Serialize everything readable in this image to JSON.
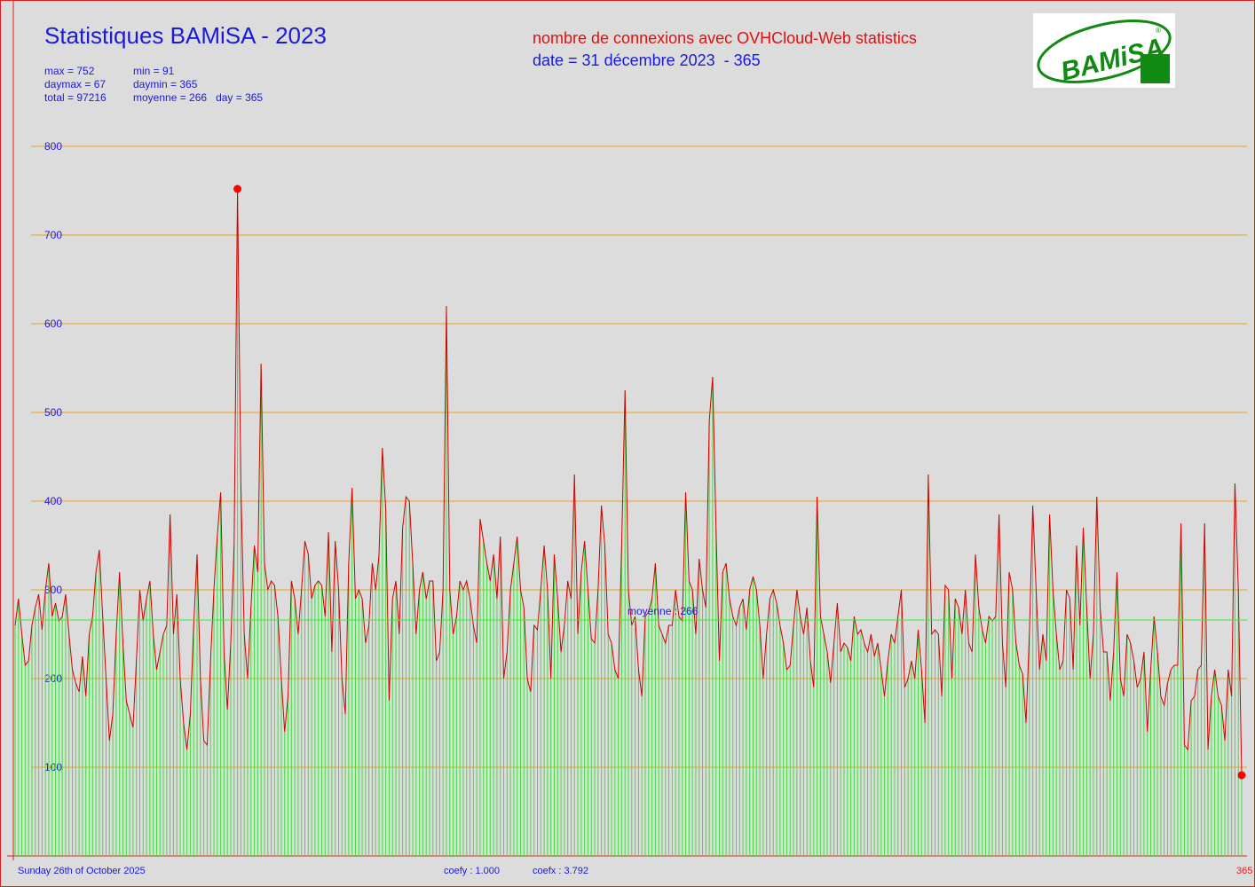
{
  "header": {
    "title": "Statistiques BAMiSA - 2023",
    "subtitle": "nombre de connexions avec OVHCloud-Web statistics",
    "date": "date = 31 décembre 2023  - 365"
  },
  "stats": [
    [
      "max = 752",
      "min = 91"
    ],
    [
      "daymax = 67",
      "daymin = 365"
    ],
    [
      "total = 97216",
      "moyenne = 266   day = 365"
    ]
  ],
  "logo": {
    "text": "BAMiSA",
    "mark": "®"
  },
  "footer": {
    "date": "Sunday 26th of October 2025",
    "coefy": "coefy : 1.000",
    "coefx": "coefx : 3.792",
    "days": "365"
  },
  "chart_data": {
    "type": "bar",
    "bar_color": "#3ee03e",
    "line_color": "#d00000",
    "grid_color": "#f0a020",
    "mean_color": "#33ee33",
    "ylim": [
      0,
      800
    ],
    "yticks": [
      100,
      200,
      300,
      400,
      500,
      600,
      700,
      800
    ],
    "grid": true,
    "mean": 266,
    "mean_label": "moyenne : 266",
    "values": [
      260,
      290,
      250,
      215,
      220,
      260,
      280,
      295,
      255,
      300,
      330,
      270,
      285,
      265,
      270,
      295,
      250,
      210,
      195,
      185,
      225,
      180,
      250,
      270,
      320,
      345,
      270,
      200,
      130,
      160,
      250,
      320,
      240,
      175,
      160,
      145,
      220,
      300,
      265,
      290,
      310,
      250,
      210,
      230,
      250,
      260,
      385,
      250,
      295,
      200,
      150,
      120,
      160,
      260,
      340,
      200,
      130,
      125,
      220,
      300,
      360,
      410,
      230,
      165,
      240,
      350,
      752,
      420,
      250,
      200,
      280,
      350,
      320,
      555,
      330,
      300,
      310,
      305,
      270,
      200,
      140,
      180,
      310,
      290,
      250,
      300,
      355,
      340,
      290,
      305,
      310,
      305,
      270,
      365,
      230,
      355,
      300,
      200,
      160,
      330,
      415,
      290,
      300,
      290,
      240,
      260,
      330,
      300,
      340,
      460,
      390,
      175,
      290,
      310,
      250,
      370,
      405,
      400,
      330,
      250,
      300,
      320,
      290,
      310,
      310,
      220,
      230,
      300,
      620,
      300,
      250,
      270,
      310,
      300,
      310,
      290,
      260,
      240,
      380,
      355,
      330,
      310,
      340,
      290,
      360,
      200,
      230,
      300,
      330,
      360,
      300,
      280,
      200,
      185,
      260,
      255,
      300,
      350,
      300,
      200,
      340,
      290,
      230,
      260,
      310,
      290,
      430,
      250,
      320,
      355,
      300,
      245,
      240,
      300,
      395,
      350,
      250,
      240,
      210,
      200,
      350,
      525,
      300,
      260,
      270,
      210,
      180,
      270,
      275,
      290,
      330,
      260,
      250,
      240,
      260,
      260,
      300,
      270,
      265,
      410,
      310,
      300,
      250,
      335,
      300,
      280,
      490,
      540,
      370,
      220,
      320,
      330,
      290,
      270,
      260,
      280,
      290,
      255,
      300,
      315,
      300,
      260,
      200,
      250,
      290,
      300,
      285,
      260,
      240,
      210,
      215,
      260,
      300,
      270,
      250,
      280,
      220,
      190,
      405,
      270,
      250,
      230,
      195,
      240,
      285,
      230,
      240,
      235,
      220,
      270,
      250,
      255,
      240,
      230,
      250,
      225,
      240,
      210,
      180,
      220,
      250,
      240,
      270,
      300,
      190,
      200,
      220,
      200,
      255,
      210,
      150,
      430,
      250,
      255,
      250,
      180,
      305,
      300,
      200,
      290,
      280,
      250,
      300,
      240,
      230,
      340,
      280,
      255,
      240,
      270,
      265,
      270,
      385,
      240,
      190,
      320,
      300,
      240,
      215,
      205,
      150,
      250,
      395,
      300,
      210,
      250,
      220,
      385,
      300,
      250,
      210,
      220,
      300,
      290,
      210,
      350,
      260,
      370,
      280,
      200,
      250,
      405,
      280,
      230,
      230,
      175,
      230,
      320,
      200,
      180,
      250,
      240,
      220,
      190,
      200,
      230,
      140,
      210,
      270,
      230,
      180,
      170,
      195,
      210,
      215,
      215,
      375,
      125,
      120,
      175,
      180,
      210,
      215,
      375,
      120,
      180,
      210,
      180,
      170,
      130,
      210,
      180,
      420,
      300,
      91
    ]
  }
}
